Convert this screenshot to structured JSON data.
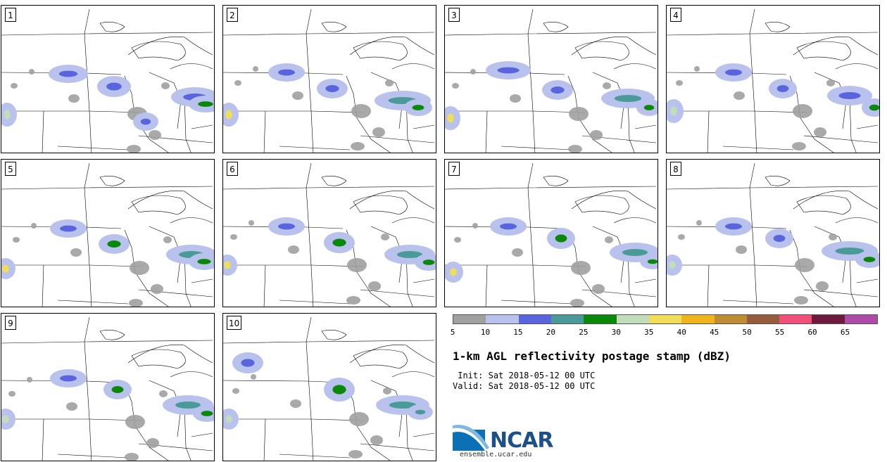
{
  "panels": [
    {
      "label": "1"
    },
    {
      "label": "2"
    },
    {
      "label": "3"
    },
    {
      "label": "4"
    },
    {
      "label": "5"
    },
    {
      "label": "6"
    },
    {
      "label": "7"
    },
    {
      "label": "8"
    },
    {
      "label": "9"
    },
    {
      "label": "10"
    }
  ],
  "legend": {
    "colors": [
      "#a0a0a0",
      "#b8c2ec",
      "#5a64dc",
      "#4a9a9a",
      "#0a880a",
      "#c2dcbc",
      "#f0de5a",
      "#f0b41e",
      "#be8c32",
      "#965a3c",
      "#f0507a",
      "#6e1a3c",
      "#b04aa8"
    ],
    "ticks": [
      "5",
      "10",
      "15",
      "20",
      "25",
      "30",
      "35",
      "40",
      "45",
      "50",
      "55",
      "60",
      "65"
    ]
  },
  "title": "1-km AGL reflectivity postage stamp (dBZ)",
  "init_label": " Init:",
  "init_value": "Sat 2018-05-12 00 UTC",
  "valid_label": "Valid:",
  "valid_value": "Sat 2018-05-12 00 UTC",
  "logo": {
    "name": "NCAR",
    "site": "ensemble.ucar.edu"
  }
}
